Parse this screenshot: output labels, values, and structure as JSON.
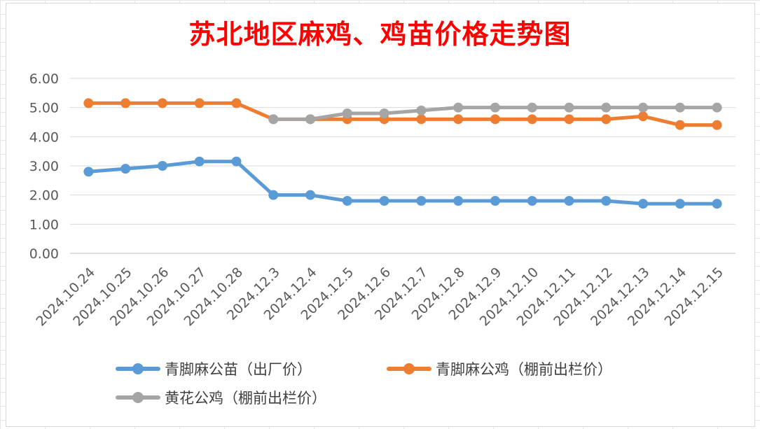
{
  "chart_data": {
    "type": "line",
    "title": "苏北地区麻鸡、鸡苗价格走势图",
    "categories": [
      "2024.10.24",
      "2024.10.25",
      "2024.10.26",
      "2024.10.27",
      "2024.10.28",
      "2024.12.3",
      "2024.12.4",
      "2024.12.5",
      "2024.12.6",
      "2024.12.7",
      "2024.12.8",
      "2024.12.9",
      "2024.12.10",
      "2024.12.11",
      "2024.12.12",
      "2024.12.13",
      "2024.12.14",
      "2024.12.15"
    ],
    "ylim": [
      0,
      6
    ],
    "yticks": [
      "0.00",
      "1.00",
      "2.00",
      "3.00",
      "4.00",
      "5.00",
      "6.00"
    ],
    "grid": true,
    "legend_position": "bottom",
    "series": [
      {
        "name": "青脚麻公苗（出厂价）",
        "color": "#5b9bd5",
        "values": [
          2.8,
          2.9,
          3.0,
          3.15,
          3.15,
          2.0,
          2.0,
          1.8,
          1.8,
          1.8,
          1.8,
          1.8,
          1.8,
          1.8,
          1.8,
          1.7,
          1.7,
          1.7
        ]
      },
      {
        "name": "青脚麻公鸡（棚前出栏价）",
        "color": "#ed7d31",
        "values": [
          5.15,
          5.15,
          5.15,
          5.15,
          5.15,
          4.6,
          4.6,
          4.6,
          4.6,
          4.6,
          4.6,
          4.6,
          4.6,
          4.6,
          4.6,
          4.7,
          4.4,
          4.4
        ]
      },
      {
        "name": "黄花公鸡（棚前出栏价）",
        "color": "#a5a5a5",
        "values": [
          null,
          null,
          null,
          null,
          null,
          4.6,
          4.6,
          4.8,
          4.8,
          4.9,
          5.0,
          5.0,
          5.0,
          5.0,
          5.0,
          5.0,
          5.0,
          5.0
        ]
      }
    ]
  }
}
